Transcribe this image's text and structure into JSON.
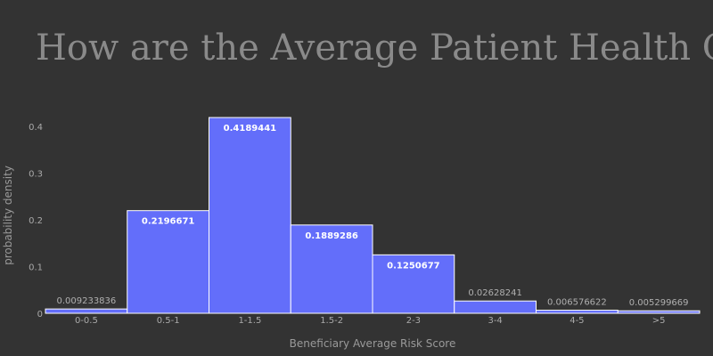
{
  "chart_data": {
    "type": "bar",
    "title": "How are the Average Patient Health Condition?",
    "xlabel": "Beneficiary Average Risk Score",
    "ylabel": "probability density",
    "categories": [
      "0-0.5",
      "0.5-1",
      "1-1.5",
      "1.5-2",
      "2-3",
      "3-4",
      "4-5",
      ">5"
    ],
    "values": [
      0.009233836,
      0.2196671,
      0.4189441,
      0.1889286,
      0.1250677,
      0.02628241,
      0.006576622,
      0.005299669
    ],
    "value_labels": [
      "0.009233836",
      "0.2196671",
      "0.4189441",
      "0.1889286",
      "0.1250677",
      "0.02628241",
      "0.006576622",
      "0.005299669"
    ],
    "ylim": [
      0,
      0.44
    ],
    "yticks": [
      0,
      0.1,
      0.2,
      0.3,
      0.4
    ],
    "ytick_labels": [
      "0",
      "0.1",
      "0.2",
      "0.3",
      "0.4"
    ],
    "grid": false,
    "legend": "none",
    "colors": {
      "background": "#333333",
      "bar": "#636efa",
      "bar_edge": "#ffffff"
    }
  }
}
